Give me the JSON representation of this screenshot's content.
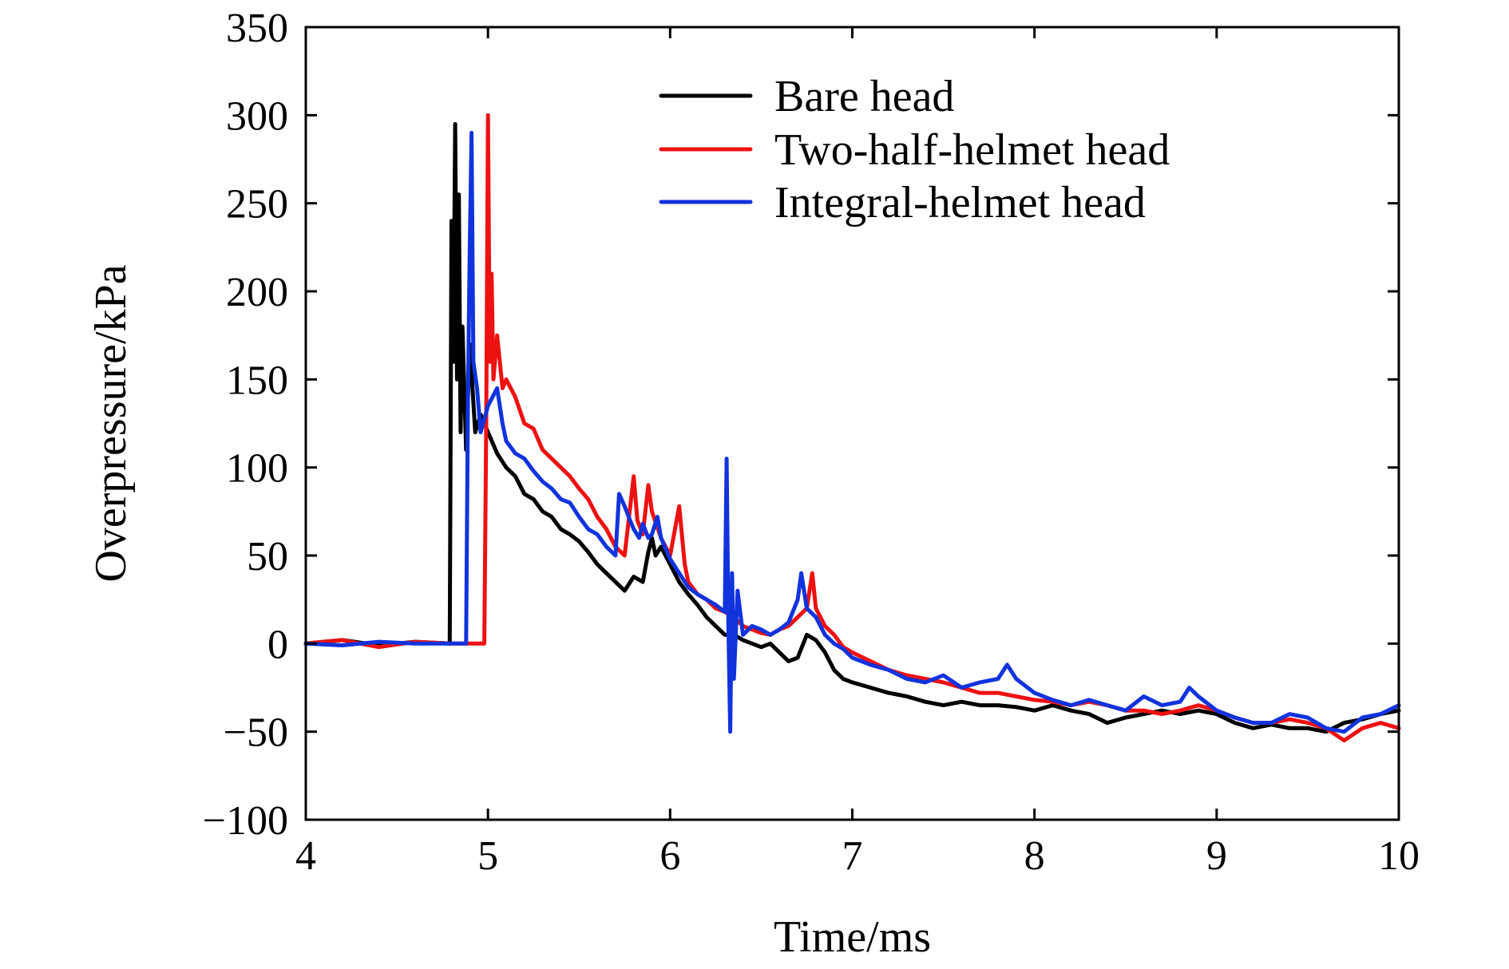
{
  "chart_data": {
    "type": "line",
    "xlabel": "Time/ms",
    "ylabel": "Overpressure/kPa",
    "xlim": [
      4,
      10
    ],
    "ylim": [
      -100,
      350
    ],
    "xticks": [
      "4",
      "5",
      "6",
      "7",
      "8",
      "9",
      "10"
    ],
    "yticks": [
      "−100",
      "−50",
      "0",
      "50",
      "100",
      "150",
      "200",
      "250",
      "300",
      "350"
    ],
    "xtick_values": [
      4,
      5,
      6,
      7,
      8,
      9,
      10
    ],
    "ytick_values": [
      -100,
      -50,
      0,
      50,
      100,
      150,
      200,
      250,
      300,
      350
    ],
    "grid": false,
    "legend_position": "top-right",
    "series": [
      {
        "name": "Bare head",
        "color": "#000000",
        "points": [
          [
            4.0,
            0
          ],
          [
            4.2,
            2
          ],
          [
            4.4,
            -1
          ],
          [
            4.6,
            1
          ],
          [
            4.79,
            0
          ],
          [
            4.8,
            240
          ],
          [
            4.81,
            160
          ],
          [
            4.82,
            295
          ],
          [
            4.83,
            150
          ],
          [
            4.84,
            255
          ],
          [
            4.85,
            120
          ],
          [
            4.86,
            180
          ],
          [
            4.88,
            110
          ],
          [
            4.9,
            170
          ],
          [
            4.93,
            120
          ],
          [
            4.96,
            130
          ],
          [
            5.0,
            120
          ],
          [
            5.05,
            108
          ],
          [
            5.1,
            100
          ],
          [
            5.15,
            95
          ],
          [
            5.2,
            85
          ],
          [
            5.25,
            82
          ],
          [
            5.3,
            75
          ],
          [
            5.35,
            72
          ],
          [
            5.4,
            65
          ],
          [
            5.45,
            62
          ],
          [
            5.5,
            58
          ],
          [
            5.55,
            52
          ],
          [
            5.6,
            45
          ],
          [
            5.65,
            40
          ],
          [
            5.7,
            35
          ],
          [
            5.75,
            30
          ],
          [
            5.8,
            38
          ],
          [
            5.85,
            35
          ],
          [
            5.88,
            52
          ],
          [
            5.9,
            60
          ],
          [
            5.92,
            50
          ],
          [
            5.95,
            55
          ],
          [
            6.0,
            45
          ],
          [
            6.05,
            35
          ],
          [
            6.1,
            28
          ],
          [
            6.15,
            22
          ],
          [
            6.2,
            15
          ],
          [
            6.25,
            10
          ],
          [
            6.3,
            5
          ],
          [
            6.35,
            5
          ],
          [
            6.4,
            2
          ],
          [
            6.45,
            0
          ],
          [
            6.5,
            -2
          ],
          [
            6.55,
            0
          ],
          [
            6.6,
            -5
          ],
          [
            6.65,
            -10
          ],
          [
            6.7,
            -8
          ],
          [
            6.75,
            5
          ],
          [
            6.8,
            2
          ],
          [
            6.85,
            -5
          ],
          [
            6.9,
            -15
          ],
          [
            6.95,
            -20
          ],
          [
            7.0,
            -22
          ],
          [
            7.1,
            -25
          ],
          [
            7.2,
            -28
          ],
          [
            7.3,
            -30
          ],
          [
            7.4,
            -33
          ],
          [
            7.5,
            -35
          ],
          [
            7.6,
            -33
          ],
          [
            7.7,
            -35
          ],
          [
            7.8,
            -35
          ],
          [
            7.9,
            -36
          ],
          [
            8.0,
            -38
          ],
          [
            8.1,
            -35
          ],
          [
            8.2,
            -38
          ],
          [
            8.3,
            -40
          ],
          [
            8.4,
            -45
          ],
          [
            8.5,
            -42
          ],
          [
            8.6,
            -40
          ],
          [
            8.7,
            -38
          ],
          [
            8.8,
            -40
          ],
          [
            8.9,
            -38
          ],
          [
            9.0,
            -40
          ],
          [
            9.1,
            -45
          ],
          [
            9.2,
            -48
          ],
          [
            9.3,
            -46
          ],
          [
            9.4,
            -48
          ],
          [
            9.5,
            -48
          ],
          [
            9.6,
            -50
          ],
          [
            9.7,
            -45
          ],
          [
            9.8,
            -43
          ],
          [
            9.9,
            -40
          ],
          [
            10.0,
            -38
          ]
        ]
      },
      {
        "name": "Two-half-helmet head",
        "color": "#ee1111",
        "points": [
          [
            4.0,
            0
          ],
          [
            4.2,
            2
          ],
          [
            4.4,
            -2
          ],
          [
            4.6,
            1
          ],
          [
            4.8,
            0
          ],
          [
            4.98,
            0
          ],
          [
            4.99,
            120
          ],
          [
            5.0,
            300
          ],
          [
            5.01,
            160
          ],
          [
            5.02,
            210
          ],
          [
            5.03,
            150
          ],
          [
            5.05,
            175
          ],
          [
            5.08,
            145
          ],
          [
            5.1,
            150
          ],
          [
            5.15,
            140
          ],
          [
            5.2,
            125
          ],
          [
            5.25,
            122
          ],
          [
            5.3,
            110
          ],
          [
            5.35,
            105
          ],
          [
            5.4,
            100
          ],
          [
            5.45,
            95
          ],
          [
            5.5,
            88
          ],
          [
            5.55,
            82
          ],
          [
            5.6,
            72
          ],
          [
            5.65,
            65
          ],
          [
            5.7,
            55
          ],
          [
            5.75,
            50
          ],
          [
            5.8,
            95
          ],
          [
            5.82,
            70
          ],
          [
            5.85,
            62
          ],
          [
            5.88,
            90
          ],
          [
            5.9,
            75
          ],
          [
            5.95,
            60
          ],
          [
            6.0,
            50
          ],
          [
            6.05,
            78
          ],
          [
            6.08,
            45
          ],
          [
            6.1,
            35
          ],
          [
            6.15,
            28
          ],
          [
            6.2,
            25
          ],
          [
            6.25,
            20
          ],
          [
            6.3,
            18
          ],
          [
            6.35,
            15
          ],
          [
            6.4,
            10
          ],
          [
            6.45,
            8
          ],
          [
            6.5,
            6
          ],
          [
            6.55,
            5
          ],
          [
            6.6,
            8
          ],
          [
            6.65,
            10
          ],
          [
            6.7,
            15
          ],
          [
            6.75,
            20
          ],
          [
            6.78,
            40
          ],
          [
            6.8,
            20
          ],
          [
            6.85,
            10
          ],
          [
            6.9,
            5
          ],
          [
            6.95,
            -2
          ],
          [
            7.0,
            -5
          ],
          [
            7.1,
            -10
          ],
          [
            7.2,
            -15
          ],
          [
            7.3,
            -18
          ],
          [
            7.4,
            -20
          ],
          [
            7.5,
            -22
          ],
          [
            7.6,
            -25
          ],
          [
            7.7,
            -28
          ],
          [
            7.8,
            -28
          ],
          [
            7.9,
            -30
          ],
          [
            8.0,
            -32
          ],
          [
            8.1,
            -33
          ],
          [
            8.2,
            -35
          ],
          [
            8.3,
            -33
          ],
          [
            8.4,
            -35
          ],
          [
            8.5,
            -38
          ],
          [
            8.6,
            -38
          ],
          [
            8.7,
            -40
          ],
          [
            8.8,
            -38
          ],
          [
            8.9,
            -35
          ],
          [
            9.0,
            -38
          ],
          [
            9.1,
            -42
          ],
          [
            9.2,
            -45
          ],
          [
            9.3,
            -45
          ],
          [
            9.4,
            -43
          ],
          [
            9.5,
            -45
          ],
          [
            9.6,
            -48
          ],
          [
            9.7,
            -55
          ],
          [
            9.8,
            -48
          ],
          [
            9.9,
            -45
          ],
          [
            10.0,
            -48
          ]
        ]
      },
      {
        "name": "Integral-helmet head",
        "color": "#1133dd",
        "points": [
          [
            4.0,
            0
          ],
          [
            4.2,
            -1
          ],
          [
            4.4,
            1
          ],
          [
            4.6,
            0
          ],
          [
            4.8,
            0
          ],
          [
            4.88,
            0
          ],
          [
            4.89,
            140
          ],
          [
            4.9,
            225
          ],
          [
            4.91,
            290
          ],
          [
            4.92,
            160
          ],
          [
            4.94,
            145
          ],
          [
            4.96,
            120
          ],
          [
            5.0,
            135
          ],
          [
            5.05,
            145
          ],
          [
            5.08,
            125
          ],
          [
            5.1,
            115
          ],
          [
            5.15,
            108
          ],
          [
            5.2,
            105
          ],
          [
            5.25,
            98
          ],
          [
            5.3,
            92
          ],
          [
            5.35,
            88
          ],
          [
            5.4,
            82
          ],
          [
            5.45,
            80
          ],
          [
            5.5,
            72
          ],
          [
            5.55,
            65
          ],
          [
            5.6,
            62
          ],
          [
            5.65,
            55
          ],
          [
            5.7,
            50
          ],
          [
            5.72,
            85
          ],
          [
            5.75,
            78
          ],
          [
            5.78,
            70
          ],
          [
            5.8,
            65
          ],
          [
            5.83,
            60
          ],
          [
            5.85,
            68
          ],
          [
            5.88,
            60
          ],
          [
            5.9,
            62
          ],
          [
            5.93,
            72
          ],
          [
            5.95,
            60
          ],
          [
            6.0,
            48
          ],
          [
            6.05,
            40
          ],
          [
            6.1,
            32
          ],
          [
            6.15,
            28
          ],
          [
            6.2,
            25
          ],
          [
            6.25,
            22
          ],
          [
            6.3,
            18
          ],
          [
            6.31,
            105
          ],
          [
            6.32,
            10
          ],
          [
            6.33,
            -50
          ],
          [
            6.34,
            40
          ],
          [
            6.35,
            -20
          ],
          [
            6.37,
            30
          ],
          [
            6.4,
            5
          ],
          [
            6.45,
            10
          ],
          [
            6.5,
            8
          ],
          [
            6.55,
            5
          ],
          [
            6.6,
            8
          ],
          [
            6.65,
            12
          ],
          [
            6.7,
            25
          ],
          [
            6.72,
            40
          ],
          [
            6.75,
            20
          ],
          [
            6.8,
            15
          ],
          [
            6.85,
            5
          ],
          [
            6.9,
            0
          ],
          [
            6.95,
            -3
          ],
          [
            7.0,
            -8
          ],
          [
            7.1,
            -12
          ],
          [
            7.2,
            -15
          ],
          [
            7.3,
            -20
          ],
          [
            7.4,
            -22
          ],
          [
            7.5,
            -18
          ],
          [
            7.6,
            -25
          ],
          [
            7.7,
            -22
          ],
          [
            7.8,
            -20
          ],
          [
            7.85,
            -12
          ],
          [
            7.9,
            -20
          ],
          [
            8.0,
            -28
          ],
          [
            8.1,
            -32
          ],
          [
            8.2,
            -35
          ],
          [
            8.3,
            -32
          ],
          [
            8.4,
            -35
          ],
          [
            8.5,
            -38
          ],
          [
            8.6,
            -30
          ],
          [
            8.7,
            -35
          ],
          [
            8.8,
            -33
          ],
          [
            8.85,
            -25
          ],
          [
            8.9,
            -30
          ],
          [
            9.0,
            -38
          ],
          [
            9.1,
            -42
          ],
          [
            9.2,
            -45
          ],
          [
            9.3,
            -45
          ],
          [
            9.4,
            -40
          ],
          [
            9.5,
            -42
          ],
          [
            9.6,
            -48
          ],
          [
            9.7,
            -50
          ],
          [
            9.8,
            -42
          ],
          [
            9.9,
            -40
          ],
          [
            10.0,
            -35
          ]
        ]
      }
    ]
  }
}
